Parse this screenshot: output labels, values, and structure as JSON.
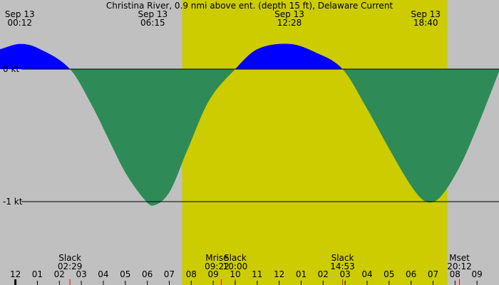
{
  "chart_data": {
    "type": "area",
    "title": "Christina River, 0.9 nmi above ent. (depth 15 ft), Delaware Current",
    "unit": "kt",
    "time_range_hours": [
      -0.7,
      22.0
    ],
    "y_range": [
      -1.55,
      0.55
    ],
    "y_ticks": [
      {
        "value": 0,
        "label": "0 kt"
      },
      {
        "value": -1,
        "label": "-1 kt"
      }
    ],
    "daylight": {
      "start_hour": 7.58,
      "end_hour": 19.65,
      "color": "#cccc00"
    },
    "background_color": "#c0c0c0",
    "flood_color": "#0000ff",
    "ebb_color": "#2e8b57",
    "current_points": [
      [
        -0.7,
        0.15
      ],
      [
        0.2,
        0.19
      ],
      [
        1.0,
        0.16
      ],
      [
        2.483,
        0.0
      ],
      [
        3.5,
        -0.28
      ],
      [
        4.3,
        -0.55
      ],
      [
        5.0,
        -0.78
      ],
      [
        5.8,
        -0.97
      ],
      [
        6.25,
        -1.03
      ],
      [
        7.0,
        -0.93
      ],
      [
        7.8,
        -0.62
      ],
      [
        8.8,
        -0.24
      ],
      [
        10.0,
        0.0
      ],
      [
        11.0,
        0.15
      ],
      [
        12.467,
        0.19
      ],
      [
        13.6,
        0.13
      ],
      [
        14.883,
        0.0
      ],
      [
        16.0,
        -0.3
      ],
      [
        17.0,
        -0.6
      ],
      [
        18.0,
        -0.88
      ],
      [
        18.667,
        -1.0
      ],
      [
        19.3,
        -0.97
      ],
      [
        20.2,
        -0.74
      ],
      [
        21.0,
        -0.44
      ],
      [
        22.0,
        -0.02
      ]
    ],
    "extremes": [
      {
        "date": "Sep 13",
        "time": "00:12",
        "hour": 0.2
      },
      {
        "date": "Sep 13",
        "time": "06:15",
        "hour": 6.25
      },
      {
        "date": "Sep 13",
        "time": "12:28",
        "hour": 12.467
      },
      {
        "date": "Sep 13",
        "time": "18:40",
        "hour": 18.667
      }
    ],
    "events": [
      {
        "name": "Slack",
        "time": "02:29",
        "hour": 2.483
      },
      {
        "name": "Mrise",
        "time": "09:22",
        "hour": 9.367
      },
      {
        "name": "Slack",
        "time": "10:00",
        "hour": 10.0
      },
      {
        "name": "Slack",
        "time": "14:53",
        "hour": 14.883
      },
      {
        "name": "Mset",
        "time": "20:12",
        "hour": 20.2
      }
    ],
    "hour_ticks": [
      {
        "hour": -1,
        "label": "11"
      },
      {
        "hour": 0,
        "label": "12"
      },
      {
        "hour": 1,
        "label": "01"
      },
      {
        "hour": 2,
        "label": "02"
      },
      {
        "hour": 3,
        "label": "03"
      },
      {
        "hour": 4,
        "label": "04"
      },
      {
        "hour": 5,
        "label": "05"
      },
      {
        "hour": 6,
        "label": "06"
      },
      {
        "hour": 7,
        "label": "07"
      },
      {
        "hour": 8,
        "label": "08"
      },
      {
        "hour": 9,
        "label": "09"
      },
      {
        "hour": 10,
        "label": "10"
      },
      {
        "hour": 11,
        "label": "11"
      },
      {
        "hour": 12,
        "label": "12"
      },
      {
        "hour": 13,
        "label": "01"
      },
      {
        "hour": 14,
        "label": "02"
      },
      {
        "hour": 15,
        "label": "03"
      },
      {
        "hour": 16,
        "label": "04"
      },
      {
        "hour": 17,
        "label": "05"
      },
      {
        "hour": 18,
        "label": "06"
      },
      {
        "hour": 19,
        "label": "07"
      },
      {
        "hour": 20,
        "label": "08"
      },
      {
        "hour": 21,
        "label": "09"
      }
    ]
  }
}
